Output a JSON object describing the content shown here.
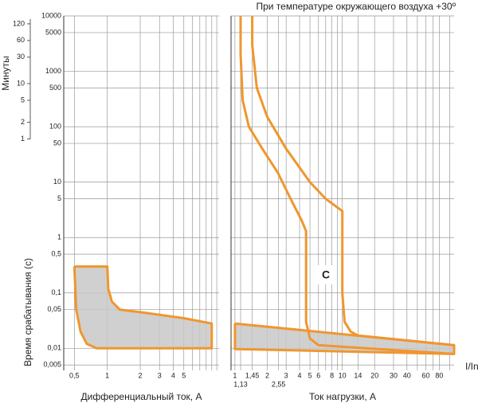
{
  "chart_data": [
    {
      "type": "area",
      "ylabel": "Время срабатывания (с)",
      "y2label": "Минуты",
      "xlabel": "Дифференциальный ток, А",
      "log_x": true,
      "log_y": true,
      "grid": true,
      "xlim": [
        0.4,
        10.5
      ],
      "xticks": [
        {
          "value": 0.5,
          "label": "0,5"
        },
        1,
        2,
        3,
        4,
        5
      ],
      "xminor": [
        6,
        7,
        8,
        9,
        10
      ],
      "ylim": [
        0.004,
        10000
      ],
      "yticks": [
        10000,
        5000,
        1000,
        500,
        100,
        50,
        10,
        5,
        1,
        {
          "value": 0.5,
          "label": "0,5"
        },
        {
          "value": 0.1,
          "label": "0,1"
        },
        {
          "value": 0.05,
          "label": "0,05"
        },
        {
          "value": 0.01,
          "label": "0,01"
        },
        {
          "value": 0.005,
          "label": "0,005"
        }
      ],
      "y2lim": [
        6.67e-05,
        166.7
      ],
      "y2ticks": [
        120,
        60,
        30,
        10,
        5,
        2,
        1
      ],
      "series": [
        {
          "color": "#f0962e",
          "fill": "#c8c8c8",
          "x": [
            0.5,
            1.0,
            1.02,
            1.1,
            1.3,
            2,
            5,
            9,
            9,
            0.8,
            0.65,
            0.57,
            0.52,
            0.5
          ],
          "values": [
            0.3,
            0.3,
            0.12,
            0.07,
            0.05,
            0.045,
            0.035,
            0.028,
            0.01,
            0.01,
            0.012,
            0.02,
            0.05,
            0.3
          ]
        }
      ]
    },
    {
      "type": "area",
      "title": "При температуре окружающего воздуха +30º",
      "xlabel": "Ток нагрузки, А",
      "xunit": "I/In",
      "annotation": "C",
      "log_x": true,
      "log_y": true,
      "grid": true,
      "xlim": [
        0.92,
        110
      ],
      "xticks": [
        1,
        {
          "value": 1.13,
          "label": "1,13"
        },
        {
          "value": 1.45,
          "label": "1,45"
        },
        2,
        {
          "value": 2.55,
          "label": "2,55"
        },
        3,
        4,
        5,
        6,
        8,
        10,
        14,
        20,
        30,
        40,
        60,
        80
      ],
      "xminor": [
        7,
        9,
        50,
        70,
        100
      ],
      "ylim": [
        0.004,
        10000
      ],
      "series": [
        {
          "color": "#f0962e",
          "fill": "#c8c8c8",
          "x": [
            1,
            110,
            110,
            1,
            1
          ],
          "values": [
            0.028,
            0.0114,
            0.0079,
            0.0097,
            0.028
          ]
        },
        {
          "color": "#f0962e",
          "x": [
            1.13,
            1.13,
            1.18,
            1.35,
            1.8,
            2.5,
            3.3,
            4.2,
            4.6,
            4.6,
            5,
            6,
            110
          ],
          "values": [
            10000,
            2000,
            300,
            100,
            40,
            15,
            5,
            2,
            1.3,
            0.03,
            0.015,
            0.0114,
            0.0079
          ]
        },
        {
          "color": "#f0962e",
          "x": [
            1.45,
            1.45,
            1.6,
            2,
            3,
            5,
            7,
            10,
            10,
            10.5,
            12,
            14,
            110
          ],
          "values": [
            10000,
            3000,
            500,
            150,
            40,
            10,
            5,
            3,
            0.1,
            0.03,
            0.02,
            0.017,
            0.0114
          ]
        }
      ]
    }
  ]
}
